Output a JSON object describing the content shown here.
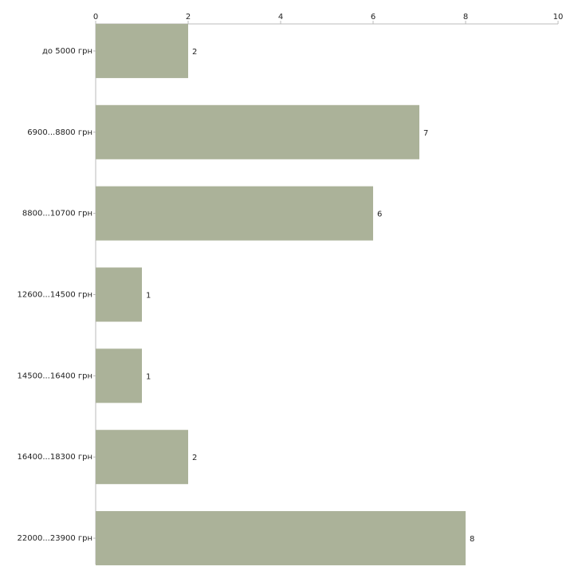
{
  "chart_data": {
    "type": "bar",
    "orientation": "horizontal",
    "categories": [
      "до 5000 грн",
      "6900...8800 грн",
      "8800...10700 грн",
      "12600...14500 грн",
      "14500...16400 грн",
      "16400...18300 грн",
      "22000...23900 грн"
    ],
    "values": [
      2,
      7,
      6,
      1,
      1,
      2,
      8
    ],
    "color": "#abb299",
    "xlim": [
      0,
      10
    ],
    "xticks": [
      0,
      2,
      4,
      6,
      8,
      10
    ],
    "grid": false
  }
}
